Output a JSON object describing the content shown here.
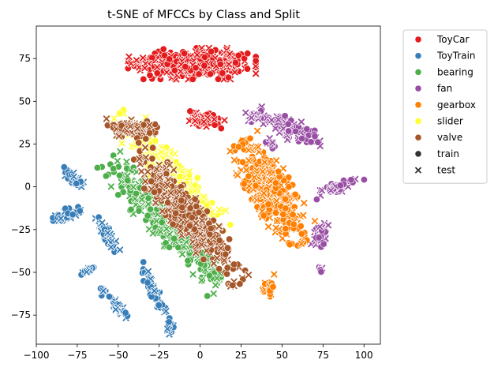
{
  "chart_data": {
    "type": "scatter",
    "title": "t-SNE of MFCCs by Class and Split",
    "xlabel": "",
    "ylabel": "",
    "xlim": [
      -100,
      110
    ],
    "ylim": [
      -92,
      94
    ],
    "xticks": [
      -100,
      -75,
      -50,
      -25,
      0,
      25,
      50,
      75,
      100
    ],
    "yticks": [
      -75,
      -50,
      -25,
      0,
      25,
      50,
      75
    ],
    "grid": false,
    "legend_position": "outside-right-top",
    "series": [
      {
        "name": "ToyCar",
        "color": "#e41a1c",
        "clusters": [
          {
            "cx": -5,
            "cy": 72,
            "rx": 30,
            "ry": 7,
            "angle": 0,
            "n": 420
          },
          {
            "cx": 3,
            "cy": 39,
            "rx": 9,
            "ry": 3.5,
            "angle": -10,
            "n": 70
          }
        ]
      },
      {
        "name": "ToyTrain",
        "color": "#377eb8",
        "clusters": [
          {
            "cx": -80,
            "cy": -16,
            "rx": 8,
            "ry": 3,
            "angle": 20,
            "n": 70
          },
          {
            "cx": -77,
            "cy": 5,
            "rx": 7,
            "ry": 2.5,
            "angle": -40,
            "n": 45
          },
          {
            "cx": -57,
            "cy": -28,
            "rx": 9,
            "ry": 2.5,
            "angle": -60,
            "n": 60
          },
          {
            "cx": -68,
            "cy": -49,
            "rx": 4,
            "ry": 1.5,
            "angle": 20,
            "n": 18
          },
          {
            "cx": -60,
            "cy": -61,
            "rx": 2,
            "ry": 2,
            "angle": 0,
            "n": 10
          },
          {
            "cx": -50,
            "cy": -71,
            "rx": 8,
            "ry": 2,
            "angle": -50,
            "n": 30
          },
          {
            "cx": -29,
            "cy": -60,
            "rx": 13,
            "ry": 2.5,
            "angle": -65,
            "n": 60
          },
          {
            "cx": -19,
            "cy": -81,
            "rx": 4,
            "ry": 2,
            "angle": -80,
            "n": 15
          }
        ]
      },
      {
        "name": "bearing",
        "color": "#4daf4a",
        "clusters": [
          {
            "cx": -22,
            "cy": -18,
            "rx": 38,
            "ry": 9,
            "angle": -45,
            "n": 360
          },
          {
            "cx": 5,
            "cy": -47,
            "rx": 12,
            "ry": 5,
            "angle": -70,
            "n": 70
          }
        ]
      },
      {
        "name": "fan",
        "color": "#984ea3",
        "clusters": [
          {
            "cx": 57,
            "cy": 33,
            "rx": 18,
            "ry": 5,
            "angle": -25,
            "n": 110
          },
          {
            "cx": 33,
            "cy": 41,
            "rx": 4,
            "ry": 2.5,
            "angle": 0,
            "n": 18
          },
          {
            "cx": 85,
            "cy": 0,
            "rx": 12,
            "ry": 2.5,
            "angle": 20,
            "n": 55
          },
          {
            "cx": 73,
            "cy": -29,
            "rx": 4,
            "ry": 8,
            "angle": 0,
            "n": 35
          },
          {
            "cx": 74,
            "cy": -48,
            "rx": 1.5,
            "ry": 2,
            "angle": 0,
            "n": 6
          },
          {
            "cx": 43,
            "cy": 25,
            "rx": 3,
            "ry": 3,
            "angle": 0,
            "n": 12
          }
        ]
      },
      {
        "name": "gearbox",
        "color": "#ff7f00",
        "clusters": [
          {
            "cx": 44,
            "cy": -3,
            "rx": 27,
            "ry": 10,
            "angle": -58,
            "n": 400
          },
          {
            "cx": 42,
            "cy": -59,
            "rx": 3,
            "ry": 6,
            "angle": 0,
            "n": 25
          }
        ]
      },
      {
        "name": "slider",
        "color": "#ffff33",
        "clusters": [
          {
            "cx": -18,
            "cy": 8,
            "rx": 36,
            "ry": 8,
            "angle": -48,
            "n": 340
          }
        ]
      },
      {
        "name": "valve",
        "color": "#a65628",
        "clusters": [
          {
            "cx": -42,
            "cy": 34,
            "rx": 12,
            "ry": 4,
            "angle": -5,
            "n": 130
          },
          {
            "cx": -8,
            "cy": -16,
            "rx": 40,
            "ry": 8,
            "angle": -50,
            "n": 380
          }
        ]
      }
    ],
    "markers": [
      {
        "name": "train",
        "shape": "circle"
      },
      {
        "name": "test",
        "shape": "x"
      }
    ]
  }
}
